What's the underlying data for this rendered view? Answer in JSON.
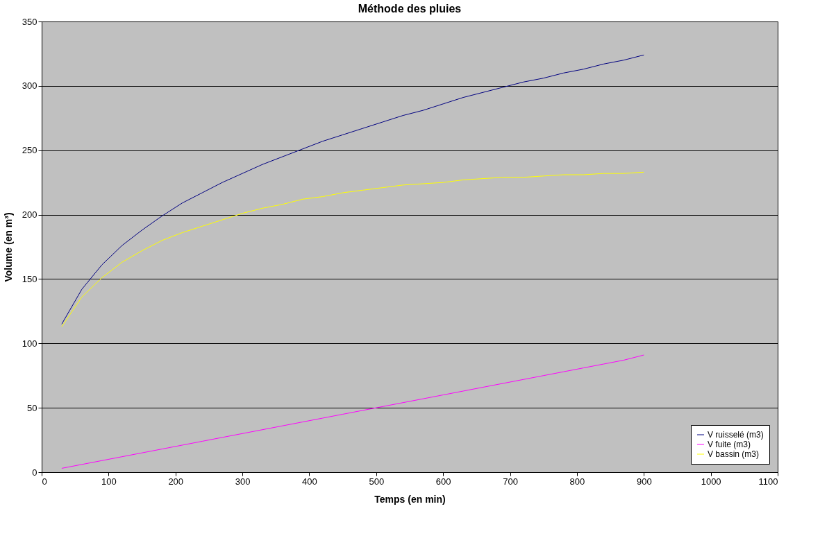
{
  "chart_data": {
    "type": "line",
    "title": "Méthode des pluies",
    "xlabel": "Temps (en min)",
    "ylabel": "Volume (en m³)",
    "x": [
      30,
      60,
      90,
      120,
      150,
      180,
      210,
      240,
      270,
      300,
      330,
      360,
      390,
      420,
      450,
      480,
      510,
      540,
      570,
      600,
      630,
      660,
      690,
      720,
      750,
      780,
      810,
      840,
      870,
      900
    ],
    "series": [
      {
        "name": "V ruisselé (m3)",
        "color": "#000080",
        "values": [
          115,
          142,
          161,
          176,
          188,
          199,
          209,
          217,
          225,
          232,
          239,
          245,
          251,
          257,
          262,
          267,
          272,
          277,
          281,
          286,
          291,
          295,
          299,
          303,
          306,
          310,
          313,
          317,
          320,
          324
        ]
      },
      {
        "name": "V fuite (m3)",
        "color": "#ff00ff",
        "values": [
          3,
          6,
          9,
          12,
          15,
          18,
          21,
          24,
          27,
          30,
          33,
          36,
          39,
          42,
          45,
          48,
          51,
          54,
          57,
          60,
          63,
          66,
          69,
          72,
          75,
          78,
          81,
          84,
          87,
          91
        ]
      },
      {
        "name": "V bassin (m3)",
        "color": "#ffff00",
        "values": [
          113,
          136,
          151,
          163,
          172,
          180,
          186,
          191,
          196,
          201,
          205,
          208,
          212,
          214,
          217,
          219,
          221,
          223,
          224,
          225,
          227,
          228,
          229,
          229,
          230,
          231,
          231,
          232,
          232,
          233
        ]
      }
    ],
    "xlim": [
      0,
      1100
    ],
    "xticks": [
      0,
      100,
      200,
      300,
      400,
      500,
      600,
      700,
      800,
      900,
      1000,
      1100
    ],
    "ylim": [
      0,
      350
    ],
    "yticks": [
      0,
      50,
      100,
      150,
      200,
      250,
      300,
      350
    ],
    "grid": "y",
    "legend": "bottom right",
    "marker": "none",
    "line_style": "solid"
  }
}
